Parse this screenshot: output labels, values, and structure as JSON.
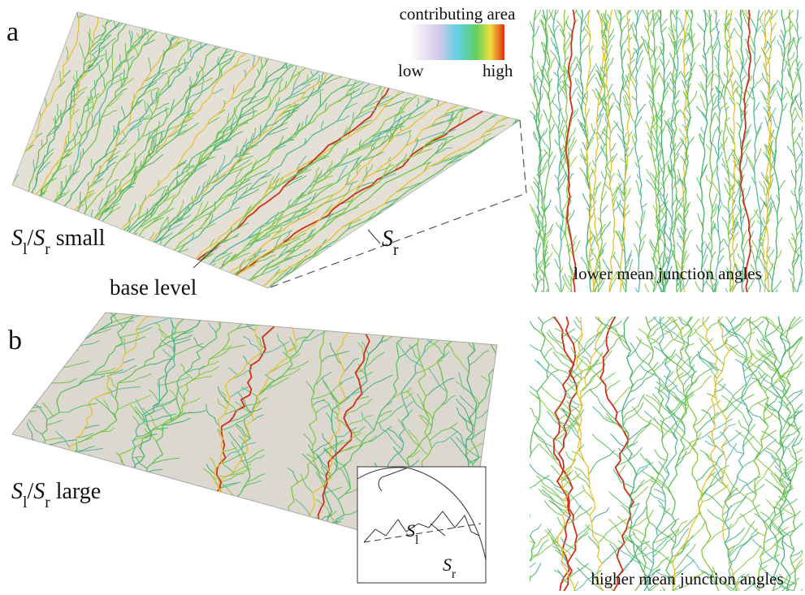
{
  "panel_a": {
    "label": "a",
    "colorbar": {
      "title": "contributing area",
      "low": "low",
      "high": "high"
    },
    "ratio_label": [
      "S",
      "l",
      "/",
      "S",
      "r",
      " small"
    ],
    "base_level": "base level",
    "slope_label": [
      "S",
      "r"
    ],
    "map_caption": "lower mean junction angles"
  },
  "panel_b": {
    "label": "b",
    "ratio_label": [
      "S",
      "l",
      "/",
      "S",
      "r",
      " large"
    ],
    "inset": {
      "lateral": [
        "S",
        "l"
      ],
      "regional": [
        "S",
        "r"
      ]
    },
    "map_caption": "higher mean junction angles"
  }
}
